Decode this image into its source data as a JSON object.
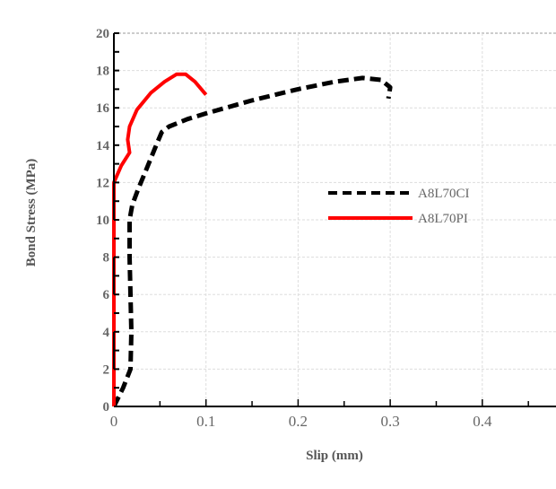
{
  "chart_data": {
    "type": "line",
    "xlabel": "Slip (mm)",
    "ylabel": "Bond Stress (MPa)",
    "xlim": [
      0,
      0.48
    ],
    "ylim": [
      0,
      20
    ],
    "xticks": [
      "0",
      "0.1",
      "0.2",
      "0.3",
      "0.4"
    ],
    "yticks": [
      "0",
      "2",
      "4",
      "6",
      "8",
      "10",
      "12",
      "14",
      "16",
      "18",
      "20"
    ],
    "grid": true,
    "legend_position": "center-right",
    "series": [
      {
        "name": "A8L70CI",
        "color": "#000000",
        "style": "dashed",
        "x": [
          0,
          0.01,
          0.018,
          0.019,
          0.018,
          0.017,
          0.017,
          0.02,
          0.026,
          0.036,
          0.046,
          0.052,
          0.06,
          0.08,
          0.1,
          0.15,
          0.2,
          0.24,
          0.27,
          0.29,
          0.3,
          0.298
        ],
        "y": [
          0,
          1,
          2,
          4,
          6,
          8,
          10,
          10.8,
          11.6,
          12.8,
          14,
          14.7,
          15.0,
          15.4,
          15.7,
          16.4,
          17.0,
          17.4,
          17.6,
          17.5,
          17.1,
          16.5
        ]
      },
      {
        "name": "A8L70PI",
        "color": "#ff0000",
        "style": "solid",
        "x": [
          0,
          0,
          0.008,
          0.017,
          0.015,
          0.017,
          0.025,
          0.04,
          0.055,
          0.068,
          0.078,
          0.088,
          0.1
        ],
        "y": [
          0,
          12,
          12.9,
          13.6,
          14.3,
          15.0,
          15.9,
          16.8,
          17.4,
          17.8,
          17.8,
          17.4,
          16.7
        ]
      }
    ]
  }
}
